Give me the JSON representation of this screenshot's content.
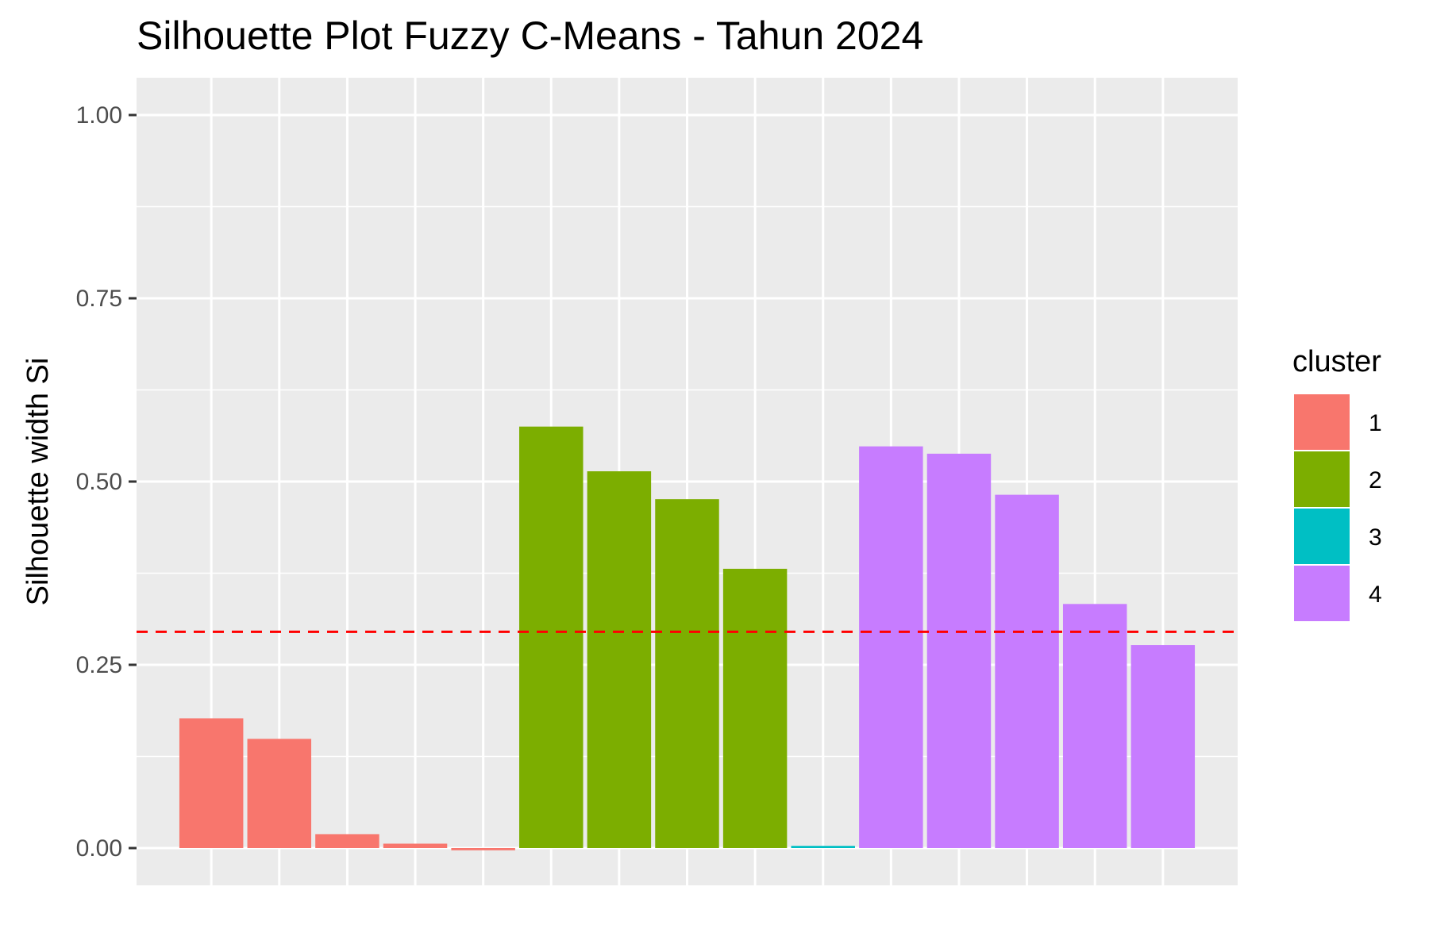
{
  "chart_data": {
    "type": "bar",
    "title": "Silhouette Plot Fuzzy C-Means - Tahun 2024",
    "xlabel": "",
    "ylabel": "Silhouette width Si",
    "ylim": [
      -0.05,
      1.05
    ],
    "yticks": [
      "0.00",
      "0.25",
      "0.50",
      "0.75",
      "1.00"
    ],
    "ytick_values": [
      0,
      0.25,
      0.5,
      0.75,
      1.0
    ],
    "grid": true,
    "legend_title": "cluster",
    "legend_position": "right",
    "reference_line": {
      "value": 0.295,
      "color": "#ff0000",
      "style": "dashed"
    },
    "clusters": [
      {
        "name": "1",
        "color": "#F8766D"
      },
      {
        "name": "2",
        "color": "#7CAE00"
      },
      {
        "name": "3",
        "color": "#00BFC4"
      },
      {
        "name": "4",
        "color": "#C77CFF"
      }
    ],
    "bars": [
      {
        "cluster": "1",
        "value": 0.177
      },
      {
        "cluster": "1",
        "value": 0.149
      },
      {
        "cluster": "1",
        "value": 0.019
      },
      {
        "cluster": "1",
        "value": 0.006
      },
      {
        "cluster": "1",
        "value": -0.003
      },
      {
        "cluster": "2",
        "value": 0.575
      },
      {
        "cluster": "2",
        "value": 0.514
      },
      {
        "cluster": "2",
        "value": 0.476
      },
      {
        "cluster": "2",
        "value": 0.381
      },
      {
        "cluster": "3",
        "value": 0.003
      },
      {
        "cluster": "4",
        "value": 0.548
      },
      {
        "cluster": "4",
        "value": 0.538
      },
      {
        "cluster": "4",
        "value": 0.482
      },
      {
        "cluster": "4",
        "value": 0.333
      },
      {
        "cluster": "4",
        "value": 0.277
      }
    ]
  }
}
